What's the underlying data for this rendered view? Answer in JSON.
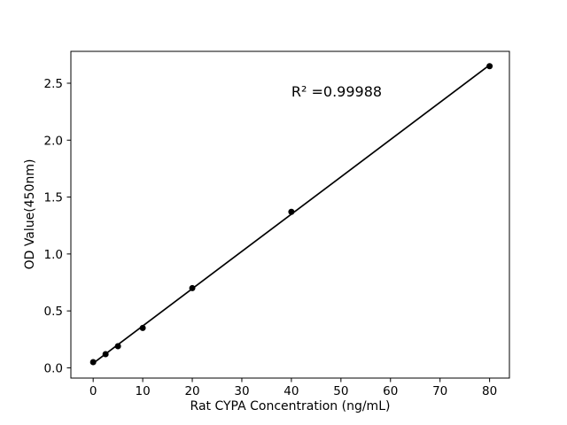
{
  "figure": {
    "background": "#ffffff",
    "text_color": "#000000"
  },
  "chart_data": {
    "type": "scatter",
    "title": "",
    "xlabel": "Rat CYPA Concentration (ng/mL)",
    "ylabel": "OD Value(450nm)",
    "x": [
      0,
      2.5,
      5,
      10,
      20,
      40,
      80
    ],
    "y": [
      0.05,
      0.12,
      0.19,
      0.35,
      0.7,
      1.37,
      2.65
    ],
    "fit_line": {
      "x": [
        0,
        80
      ],
      "y": [
        0.04,
        2.66
      ]
    },
    "annotation": {
      "text": "R² =0.99988",
      "x": 40,
      "y": 2.42
    },
    "x_ticks": {
      "values": [
        0,
        10,
        20,
        30,
        40,
        50,
        60,
        70,
        80
      ],
      "labels": [
        "0",
        "10",
        "20",
        "30",
        "40",
        "50",
        "60",
        "70",
        "80"
      ]
    },
    "y_ticks": {
      "values": [
        0.0,
        0.5,
        1.0,
        1.5,
        2.0,
        2.5
      ],
      "labels": [
        "0.0",
        "0.5",
        "1.0",
        "1.5",
        "2.0",
        "2.5"
      ]
    },
    "xlim": [
      -4.5,
      84
    ],
    "ylim": [
      -0.09,
      2.78
    ],
    "grid": false,
    "legend": "none",
    "marker_color": "#000000",
    "line_color": "#000000",
    "axis_color": "#000000"
  }
}
